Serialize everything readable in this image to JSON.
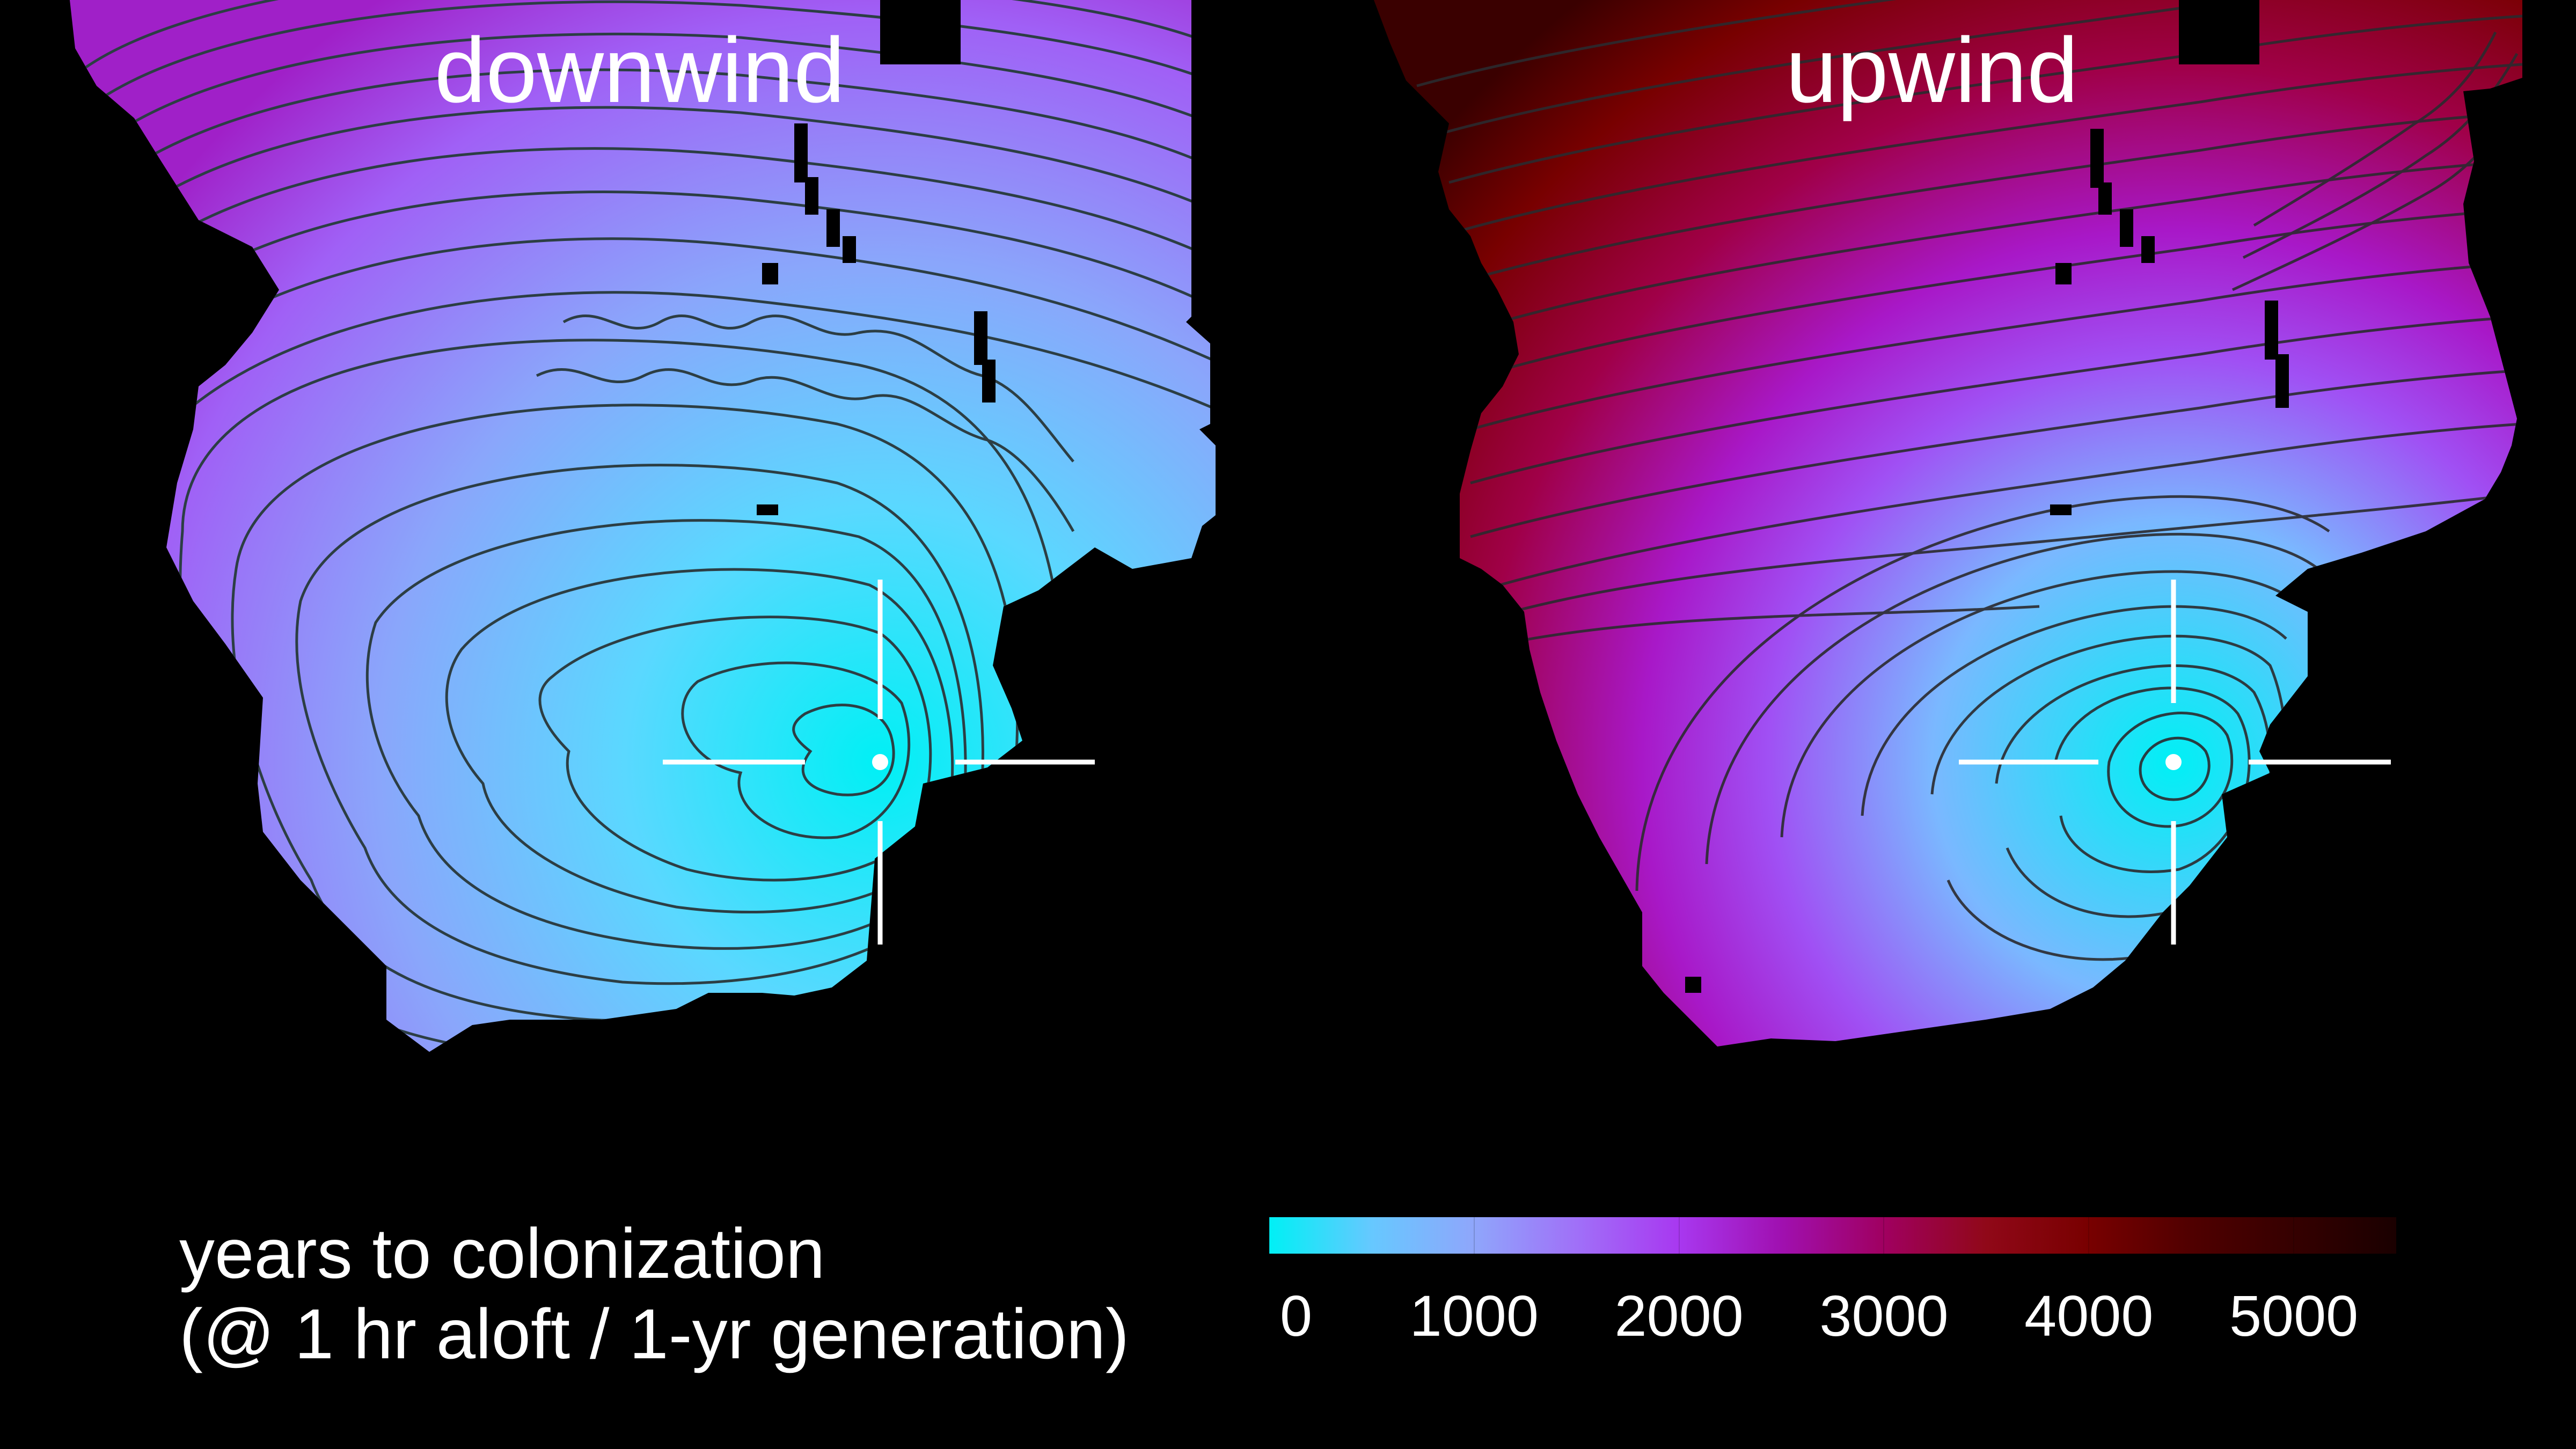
{
  "panels": [
    {
      "title": "downwind"
    },
    {
      "title": "upwind"
    }
  ],
  "legend": {
    "caption_line1": "years to colonization",
    "caption_line2": "(@ 1 hr aloft / 1-yr generation)",
    "ticks": [
      "0",
      "1000",
      "2000",
      "3000",
      "4000",
      "5000"
    ],
    "tick_values": [
      0,
      1000,
      2000,
      3000,
      4000,
      5000
    ],
    "min": 0,
    "max": 5500,
    "color_stops": [
      {
        "value": 0,
        "color": "#00f0f5"
      },
      {
        "value": 500,
        "color": "#66c8ff"
      },
      {
        "value": 1000,
        "color": "#8fa6fb"
      },
      {
        "value": 1500,
        "color": "#a070f8"
      },
      {
        "value": 2000,
        "color": "#a838f0"
      },
      {
        "value": 2500,
        "color": "#a010b0"
      },
      {
        "value": 3000,
        "color": "#a00060"
      },
      {
        "value": 3500,
        "color": "#900818"
      },
      {
        "value": 4000,
        "color": "#780000"
      },
      {
        "value": 4500,
        "color": "#500000"
      },
      {
        "value": 5500,
        "color": "#1a0000"
      }
    ]
  },
  "colors": {
    "background": "#000000",
    "contour": "#2c3e44",
    "crosshair": "#ffffff",
    "text": "#ffffff"
  }
}
